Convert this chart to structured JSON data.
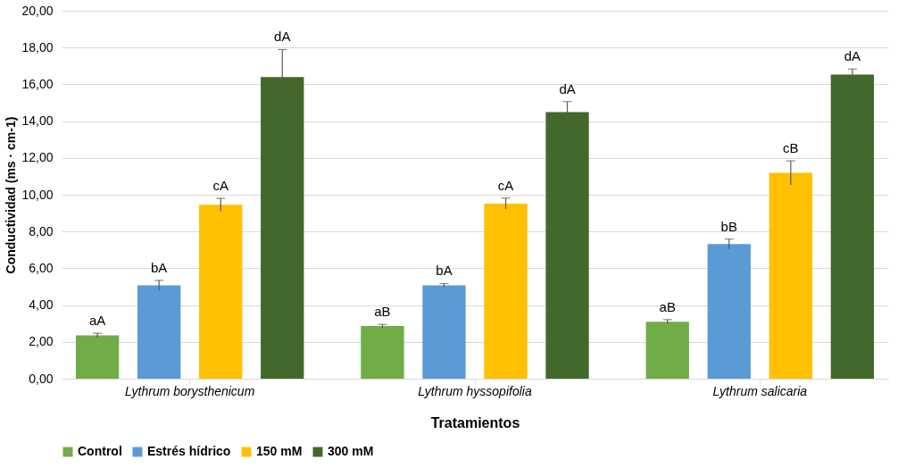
{
  "chart_data": {
    "type": "bar",
    "xlabel": "Tratamientos",
    "ylabel": "Conductividad (ms · cm-1)",
    "categories": [
      "Lythrum borysthenicum",
      "Lythrum hyssopifolia",
      "Lythrum salicaria"
    ],
    "series": [
      {
        "name": "Control",
        "color": "#70ad47",
        "values": [
          2.35,
          2.86,
          3.09
        ],
        "errors": [
          0.12,
          0.09,
          0.12
        ],
        "value_labels": [
          "aA",
          "aB",
          "aB"
        ]
      },
      {
        "name": "Estrés hídrico",
        "color": "#5b9bd5",
        "values": [
          5.07,
          5.07,
          7.32
        ],
        "errors": [
          0.27,
          0.1,
          0.27
        ],
        "value_labels": [
          "bA",
          "bA",
          "bB"
        ]
      },
      {
        "name": "150 mM",
        "color": "#ffc000",
        "values": [
          9.45,
          9.52,
          11.19
        ],
        "errors": [
          0.35,
          0.3,
          0.65
        ],
        "value_labels": [
          "cA",
          "cA",
          "cB"
        ]
      },
      {
        "name": "300 mM",
        "color": "#43682b",
        "values": [
          16.39,
          14.49,
          16.53
        ],
        "errors": [
          1.5,
          0.57,
          0.3
        ],
        "value_labels": [
          "dA",
          "dA",
          "dA"
        ]
      }
    ],
    "ylim": [
      0,
      20
    ],
    "yticks": [
      {
        "value": 0,
        "label": "0,00"
      },
      {
        "value": 2,
        "label": "2,00"
      },
      {
        "value": 4,
        "label": "4,00"
      },
      {
        "value": 6,
        "label": "6,00"
      },
      {
        "value": 8,
        "label": "8,00"
      },
      {
        "value": 10,
        "label": "10,00"
      },
      {
        "value": 12,
        "label": "12,00"
      },
      {
        "value": 14,
        "label": "14,00"
      },
      {
        "value": 16,
        "label": "16,00"
      },
      {
        "value": 18,
        "label": "18,00"
      },
      {
        "value": 20,
        "label": "20,00"
      }
    ],
    "grid": "y",
    "legend": "bottom"
  }
}
